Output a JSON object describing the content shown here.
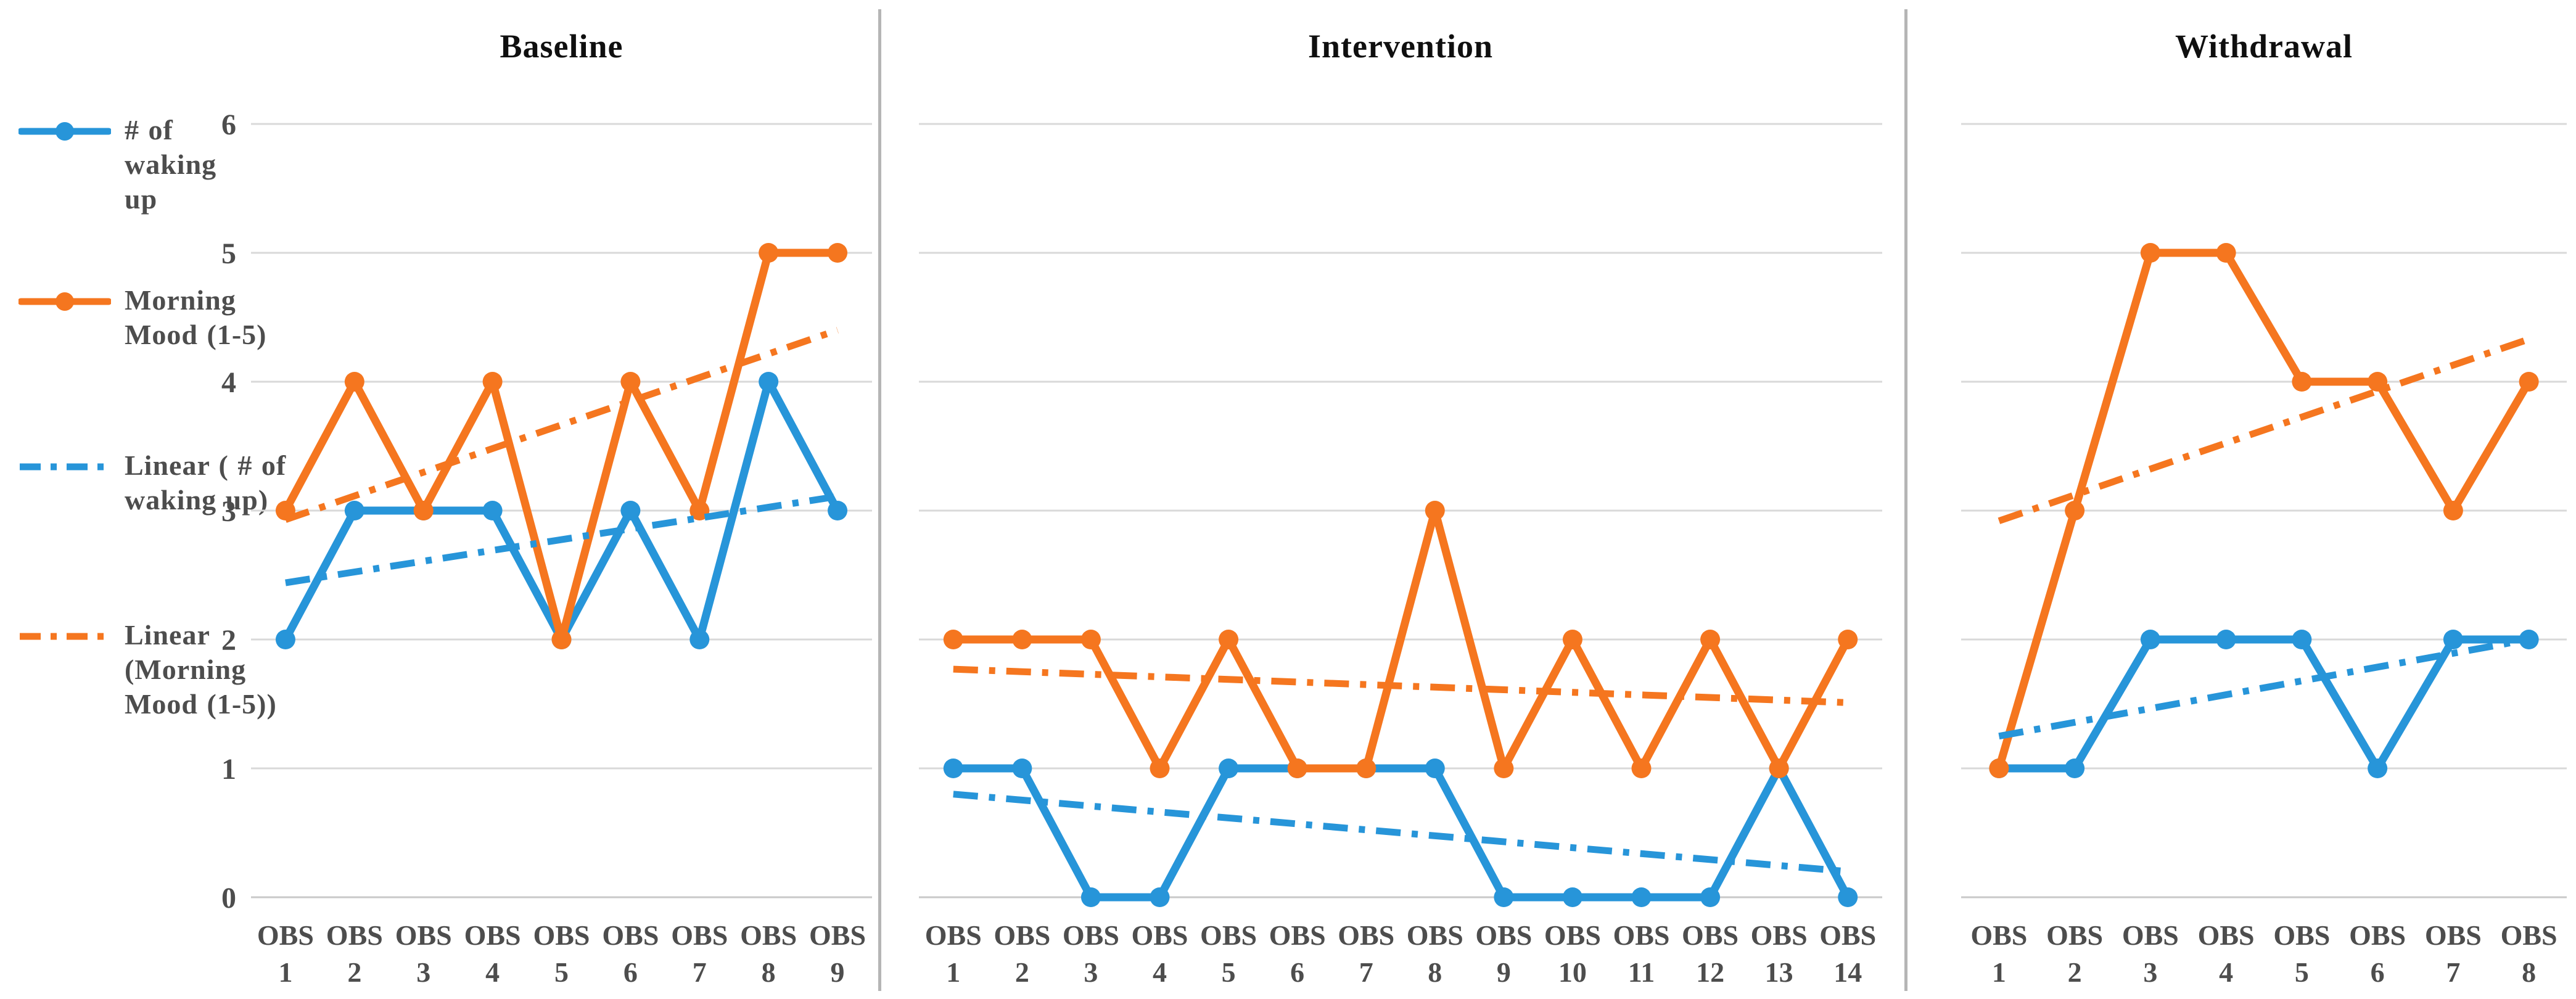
{
  "colors": {
    "waking_blue": "#2795D9",
    "mood_orange": "#F5761F",
    "gridline": "#D9D9D9",
    "axis_line": "#C9C9C9",
    "divider": "#B5B5B5",
    "label_gray": "#4D4D4D",
    "title_color": "#0F0F0F"
  },
  "y_axis": {
    "min": 0,
    "max": 6,
    "ticks": [
      6,
      5,
      4,
      3,
      2,
      1,
      0
    ]
  },
  "x_axis": {
    "tick_prefix": "OBS"
  },
  "legend": {
    "items": [
      {
        "name": "waking",
        "label": "# of waking up",
        "style": "solid-marker",
        "color": "waking_blue"
      },
      {
        "name": "mood",
        "label": "Morning Mood (1-5)",
        "style": "solid-marker",
        "color": "mood_orange"
      },
      {
        "name": "waking-trend",
        "label": "Linear ( # of waking up)",
        "style": "dash-dot",
        "color": "waking_blue"
      },
      {
        "name": "mood-trend",
        "label": "Linear (Morning Mood (1-5))",
        "style": "dash-dot",
        "color": "mood_orange"
      }
    ]
  },
  "chart_data": [
    {
      "type": "line",
      "title": "Baseline",
      "ylim": [
        0,
        6
      ],
      "grid": true,
      "y_labels_shown": true,
      "categories": [
        "1",
        "2",
        "3",
        "4",
        "5",
        "6",
        "7",
        "8",
        "9"
      ],
      "series": [
        {
          "name": "# of waking up",
          "color": "waking_blue",
          "markers": true,
          "values": [
            2,
            3,
            3,
            3,
            2,
            3,
            2,
            4,
            3
          ]
        },
        {
          "name": "Morning Mood (1-5)",
          "color": "mood_orange",
          "markers": true,
          "values": [
            3,
            4,
            3,
            4,
            2,
            4,
            3,
            5,
            5
          ]
        },
        {
          "name": "Linear (# of waking up)",
          "color": "waking_blue",
          "line_style": "dash-dot",
          "trend_endpoints": [
            2.44,
            3.11
          ]
        },
        {
          "name": "Linear (Morning Mood (1-5))",
          "color": "mood_orange",
          "line_style": "dash-dot",
          "trend_endpoints": [
            2.93,
            4.4
          ]
        }
      ]
    },
    {
      "type": "line",
      "title": "Intervention",
      "ylim": [
        0,
        6
      ],
      "grid": true,
      "y_labels_shown": false,
      "categories": [
        "1",
        "2",
        "3",
        "4",
        "5",
        "6",
        "7",
        "8",
        "9",
        "10",
        "11",
        "12",
        "13",
        "14"
      ],
      "series": [
        {
          "name": "# of waking up",
          "color": "waking_blue",
          "markers": true,
          "values": [
            1,
            1,
            0,
            0,
            1,
            1,
            1,
            1,
            0,
            0,
            0,
            0,
            1,
            0
          ]
        },
        {
          "name": "Morning Mood (1-5)",
          "color": "mood_orange",
          "markers": true,
          "values": [
            2,
            2,
            2,
            1,
            2,
            1,
            1,
            3,
            1,
            2,
            1,
            2,
            1,
            2
          ]
        },
        {
          "name": "Linear (# of waking up)",
          "color": "waking_blue",
          "line_style": "dash-dot",
          "trend_endpoints": [
            0.8,
            0.2
          ]
        },
        {
          "name": "Linear (Morning Mood (1-5))",
          "color": "mood_orange",
          "line_style": "dash-dot",
          "trend_endpoints": [
            1.77,
            1.51
          ]
        }
      ]
    },
    {
      "type": "line",
      "title": "Withdrawal",
      "ylim": [
        0,
        6
      ],
      "grid": true,
      "y_labels_shown": false,
      "categories": [
        "1",
        "2",
        "3",
        "4",
        "5",
        "6",
        "7",
        "8"
      ],
      "series": [
        {
          "name": "# of waking up",
          "color": "waking_blue",
          "markers": true,
          "values": [
            1,
            1,
            2,
            2,
            2,
            1,
            2,
            2
          ]
        },
        {
          "name": "Morning Mood (1-5)",
          "color": "mood_orange",
          "markers": true,
          "values": [
            1,
            3,
            5,
            5,
            4,
            4,
            3,
            4
          ]
        },
        {
          "name": "Linear (# of waking up)",
          "color": "waking_blue",
          "line_style": "dash-dot",
          "trend_endpoints": [
            1.25,
            2.0
          ]
        },
        {
          "name": "Linear (Morning Mood (1-5))",
          "color": "mood_orange",
          "line_style": "dash-dot",
          "trend_endpoints": [
            2.92,
            4.33
          ]
        }
      ]
    }
  ]
}
